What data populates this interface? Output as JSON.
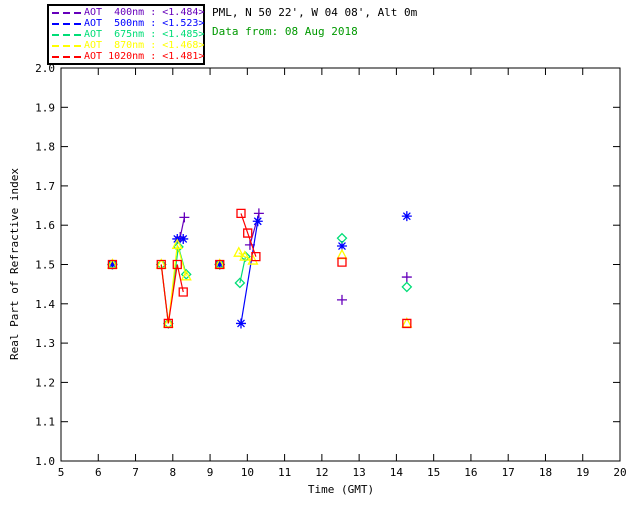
{
  "header": {
    "location": "PML, N 50 22', W 04 08', Alt 0m",
    "date_line": "Data from: 08 Aug 2018",
    "date_color": "#009900"
  },
  "chart_data": {
    "type": "scatter",
    "xlabel": "Time (GMT)",
    "ylabel": "Real Part of Refractive index",
    "xlim": [
      5,
      20
    ],
    "ylim": [
      1.0,
      2.0
    ],
    "grid": false,
    "legend_position": "top-left-outside",
    "xticks": [
      "5",
      "6",
      "7",
      "8",
      "9",
      "10",
      "11",
      "12",
      "13",
      "14",
      "15",
      "16",
      "17",
      "18",
      "19",
      "20"
    ],
    "yticks": [
      "1.0",
      "1.1",
      "1.2",
      "1.3",
      "1.4",
      "1.5",
      "1.6",
      "1.7",
      "1.8",
      "1.9",
      "2.0"
    ],
    "series": [
      {
        "name": "AOT 400nm",
        "mean": "<1.484>",
        "legend_label": "AOT  400nm : <1.484>",
        "color": "#6600BB",
        "marker": "plus",
        "clusters": [
          [
            [
              6.38,
              1.5
            ]
          ],
          [
            [
              8.2,
              1.57
            ],
            [
              8.31,
              1.62
            ]
          ],
          [
            [
              9.26,
              1.5
            ]
          ],
          [
            [
              10.07,
              1.55
            ],
            [
              10.31,
              1.63
            ]
          ],
          [
            [
              12.54,
              1.41
            ]
          ],
          [
            [
              14.28,
              1.468
            ]
          ]
        ]
      },
      {
        "name": "AOT 500nm",
        "mean": "<1.523>",
        "legend_label": "AOT  500nm : <1.523>",
        "color": "#0000FF",
        "marker": "asterisk",
        "clusters": [
          [
            [
              6.38,
              1.5
            ]
          ],
          [
            [
              8.12,
              1.565
            ],
            [
              8.28,
              1.565
            ]
          ],
          [
            [
              9.26,
              1.5
            ]
          ],
          [
            [
              9.83,
              1.35
            ],
            [
              10.28,
              1.61
            ]
          ],
          [
            [
              12.54,
              1.547
            ]
          ],
          [
            [
              14.28,
              1.623
            ]
          ]
        ]
      },
      {
        "name": "AOT 675nm",
        "mean": "<1.485>",
        "legend_label": "AOT  675nm : <1.485>",
        "color": "#00DD77",
        "marker": "diamond",
        "clusters": [
          [
            [
              6.38,
              1.5
            ]
          ],
          [
            [
              7.69,
              1.5
            ],
            [
              7.88,
              1.35
            ],
            [
              8.15,
              1.545
            ],
            [
              8.36,
              1.475
            ]
          ],
          [
            [
              9.26,
              1.5
            ]
          ],
          [
            [
              9.8,
              1.453
            ],
            [
              9.95,
              1.52
            ]
          ],
          [
            [
              12.54,
              1.567
            ]
          ],
          [
            [
              14.28,
              1.443
            ]
          ]
        ]
      },
      {
        "name": "AOT 870nm",
        "mean": "<1.468>",
        "legend_label": "AOT  870nm : <1.468>",
        "color": "#FFFF00",
        "marker": "triangle",
        "clusters": [
          [
            [
              6.38,
              1.5
            ]
          ],
          [
            [
              7.69,
              1.5
            ],
            [
              7.88,
              1.35
            ],
            [
              8.12,
              1.55
            ],
            [
              8.36,
              1.47
            ]
          ],
          [
            [
              9.26,
              1.5
            ]
          ],
          [
            [
              9.77,
              1.53
            ],
            [
              9.93,
              1.52
            ],
            [
              10.15,
              1.51
            ]
          ],
          [
            [
              12.54,
              1.524
            ]
          ],
          [
            [
              14.28,
              1.35
            ]
          ]
        ]
      },
      {
        "name": "AOT 1020nm",
        "mean": "<1.481>",
        "legend_label": "AOT 1020nm : <1.481>",
        "color": "#FF0000",
        "marker": "square",
        "clusters": [
          [
            [
              6.38,
              1.5
            ]
          ],
          [
            [
              7.69,
              1.5
            ],
            [
              7.88,
              1.35
            ],
            [
              8.12,
              1.5
            ],
            [
              8.28,
              1.43
            ]
          ],
          [
            [
              9.26,
              1.5
            ]
          ],
          [
            [
              9.83,
              1.63
            ],
            [
              10.01,
              1.58
            ],
            [
              10.23,
              1.52
            ]
          ],
          [
            [
              12.54,
              1.506
            ]
          ],
          [
            [
              14.28,
              1.35
            ]
          ]
        ]
      }
    ]
  }
}
